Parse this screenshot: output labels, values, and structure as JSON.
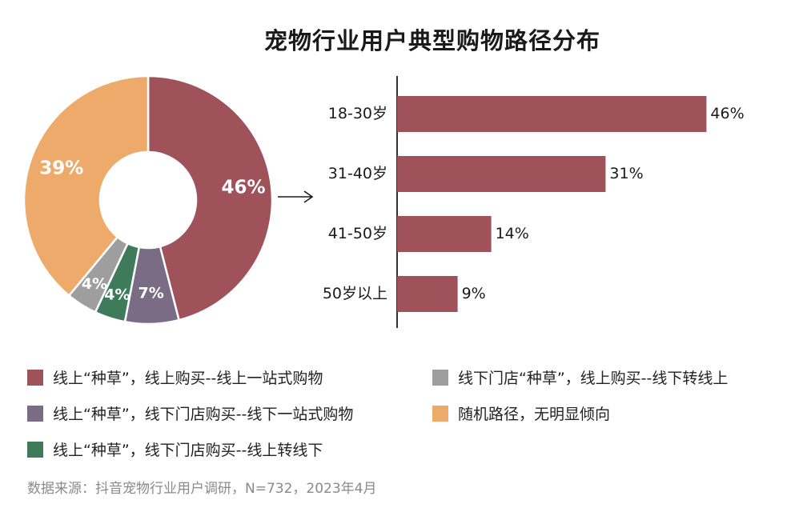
{
  "chart_data": [
    {
      "type": "pie",
      "variant": "donut",
      "title": "宠物行业用户典型购物路径分布",
      "slices": [
        {
          "label": "线上“种草”，线上购买--线上一站式购物",
          "value": 46,
          "display": "46%",
          "color": "#a0525a"
        },
        {
          "label": "线上“种草”，线下门店购买--线下一站式购物",
          "value": 7,
          "display": "7%",
          "color": "#7b6c86"
        },
        {
          "label": "线上“种草”，线下门店购买--线上转线下",
          "value": 4,
          "display": "4%",
          "color": "#3e7b5b"
        },
        {
          "label": "线下门店“种草”，线上购买--线下转线上",
          "value": 4,
          "display": "4%",
          "color": "#9e9e9e"
        },
        {
          "label": "随机路径，无明显倾向",
          "value": 39,
          "display": "39%",
          "color": "#eeaa6a"
        }
      ]
    },
    {
      "type": "bar",
      "orientation": "horizontal",
      "categories": [
        "18-30岁",
        "31-40岁",
        "41-50岁",
        "50岁以上"
      ],
      "values": [
        46,
        31,
        14,
        9
      ],
      "value_labels": [
        "46%",
        "31%",
        "14%",
        "9%"
      ],
      "xlim": [
        0,
        50
      ],
      "color": "#a0525a"
    }
  ],
  "legend": {
    "items": [
      {
        "label": "线上“种草”，线上购买--线上一站式购物",
        "color": "#a0525a"
      },
      {
        "label": "线上“种草”，线下门店购买--线下一站式购物",
        "color": "#7b6c86"
      },
      {
        "label": "线上“种草”，线下门店购买--线上转线下",
        "color": "#3e7b5b"
      },
      {
        "label": "线下门店“种草”，线上购买--线下转线上",
        "color": "#9e9e9e"
      },
      {
        "label": "随机路径，无明显倾向",
        "color": "#eeaa6a"
      }
    ]
  },
  "arrow_icon": "right-arrow-icon",
  "footer": {
    "source": "数据来源：抖音宠物行业用户调研，N=732，2023年4月"
  }
}
